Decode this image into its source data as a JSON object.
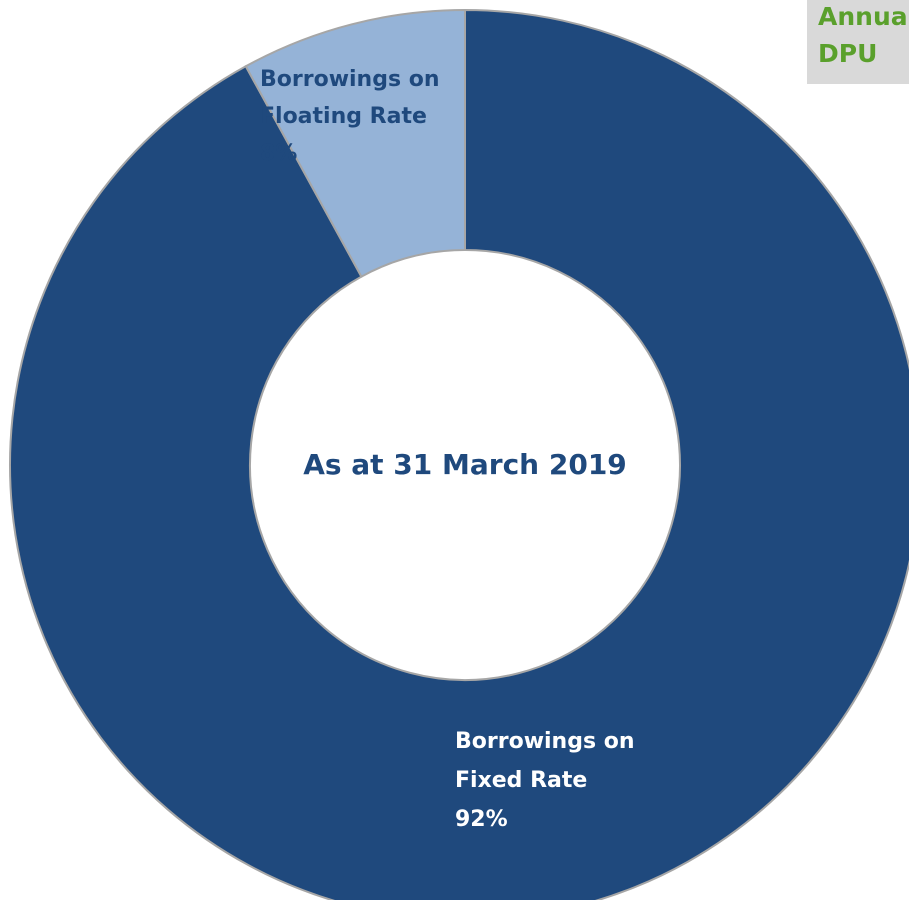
{
  "chart_data": {
    "type": "pie",
    "style": "donut",
    "center_label": "As at 31 March 2019",
    "slices": [
      {
        "label_lines": [
          "Borrowings on",
          "Fixed Rate"
        ],
        "percent_label": "92%",
        "value": 92,
        "color": "#1f497d"
      },
      {
        "label_lines": [
          "Borrowings on",
          "Floating Rate"
        ],
        "percent_label": "8%",
        "value": 8,
        "color": "#95b3d7"
      }
    ],
    "colors": {
      "text_dark": "#1f497d",
      "text_on_dark": "#ffffff",
      "slice_border": "#a6a6a6"
    }
  },
  "side_panel": {
    "line1": "Annual",
    "line2": "DPU",
    "color": "#5aa02c",
    "background": "#d9d9d9"
  }
}
